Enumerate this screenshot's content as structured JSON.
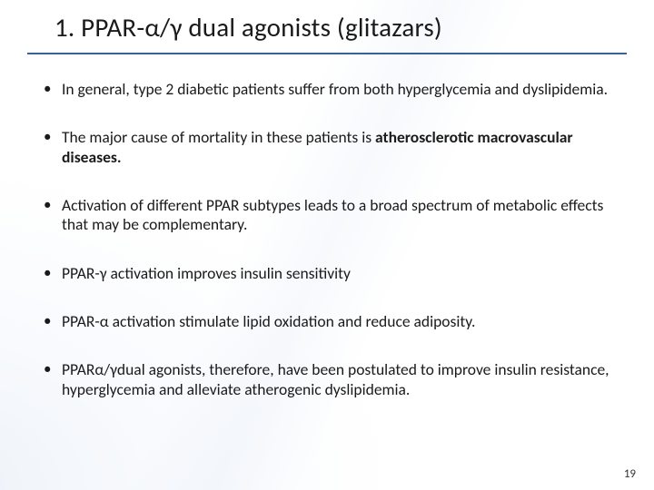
{
  "title": "1. PPAR-α/γ dual agonists (glitazars)",
  "title_rule_color": "#3a5f9e",
  "background_color": "#ffffff",
  "text_color": "#1a1a1a",
  "title_fontsize": 29,
  "bullet_fontsize": 17.5,
  "bullets": [
    {
      "pre": "In general, type 2 diabetic patients suffer from both hyperglycemia and dyslipidemia.",
      "bold": "",
      "post": ""
    },
    {
      "pre": "The major cause of mortality in these patients is ",
      "bold": "atherosclerotic macrovascular diseases.",
      "post": ""
    },
    {
      "pre": "Activation of different PPAR subtypes leads to a broad spectrum of metabolic effects that may be complementary.",
      "bold": "",
      "post": ""
    },
    {
      "pre": "PPAR-γ activation improves insulin sensitivity",
      "bold": "",
      "post": ""
    },
    {
      "pre": "PPAR-α activation stimulate lipid oxidation and reduce adiposity.",
      "bold": "",
      "post": ""
    },
    {
      "pre": "PPARα/γdual agonists, therefore, have been postulated to improve insulin resistance, hyperglycemia and alleviate atherogenic dyslipidemia.",
      "bold": "",
      "post": ""
    }
  ],
  "page_number": "19"
}
